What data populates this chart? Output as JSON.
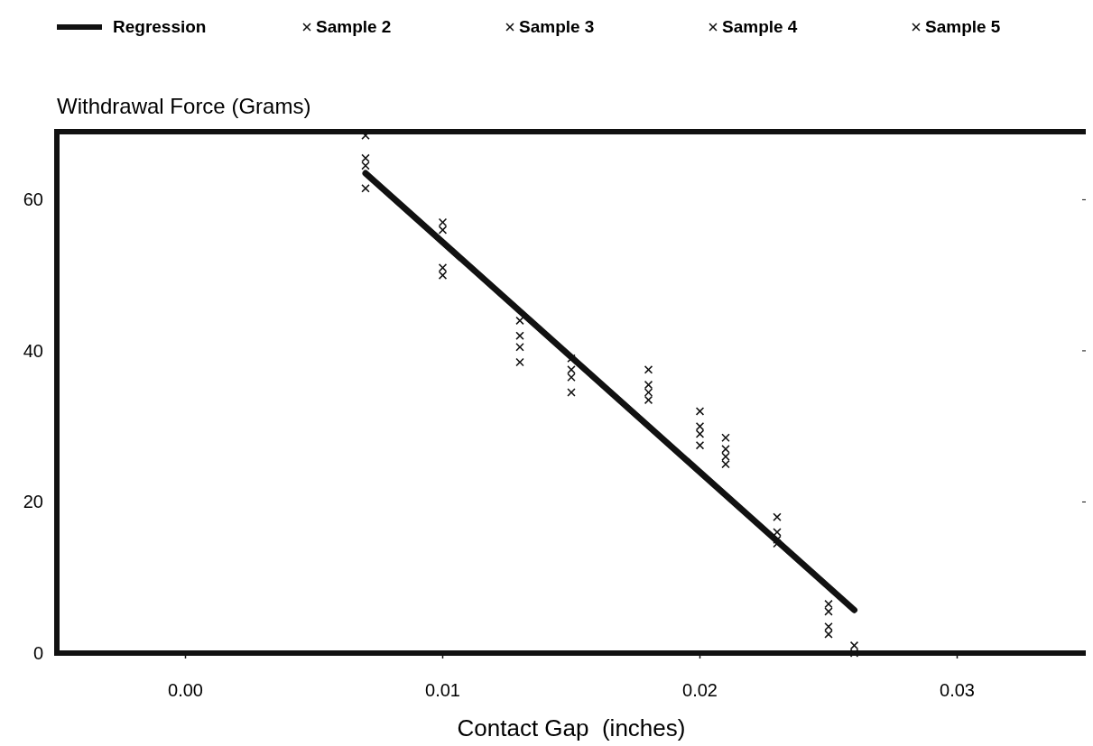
{
  "chart_data": {
    "type": "scatter",
    "xlabel": "Contact Gap  (inches)",
    "ylabel": "Withdrawal Force (Grams)",
    "xlim": [
      -0.005,
      0.035
    ],
    "xticks": [
      {
        "value": 0,
        "label": "0.00"
      },
      0.01,
      0.02,
      0.03
    ],
    "ylim": [
      0,
      69
    ],
    "yticks": [
      0,
      20,
      40,
      60
    ],
    "grid": false,
    "legend": "top",
    "marker": "cross",
    "x": [
      0.007,
      0.01,
      0.013,
      0.015,
      0.018,
      0.02,
      0.021,
      0.023,
      0.025,
      0.026
    ],
    "series": [
      {
        "name": "Regression",
        "type": "line",
        "marker": "none",
        "color": "#111111",
        "x": [
          0.007,
          0.026
        ],
        "values": [
          63.5,
          5.7
        ]
      },
      {
        "name": "Sample 2",
        "color": "#111111",
        "values": [
          68.5,
          57,
          44,
          39,
          37.5,
          32,
          28.5,
          18,
          6.5,
          1
        ]
      },
      {
        "name": "Sample 3",
        "color": "#111111",
        "values": [
          65.5,
          56,
          42,
          37.5,
          35.5,
          30,
          27,
          16,
          5.5,
          null
        ]
      },
      {
        "name": "Sample 4",
        "color": "#111111",
        "values": [
          64.5,
          51,
          40.5,
          36.5,
          34.5,
          29,
          26,
          15,
          3.5,
          null
        ]
      },
      {
        "name": "Sample 5",
        "color": "#111111",
        "values": [
          61.5,
          50,
          38.5,
          34.5,
          33.5,
          27.5,
          25,
          14.5,
          2.5,
          0
        ]
      }
    ]
  }
}
